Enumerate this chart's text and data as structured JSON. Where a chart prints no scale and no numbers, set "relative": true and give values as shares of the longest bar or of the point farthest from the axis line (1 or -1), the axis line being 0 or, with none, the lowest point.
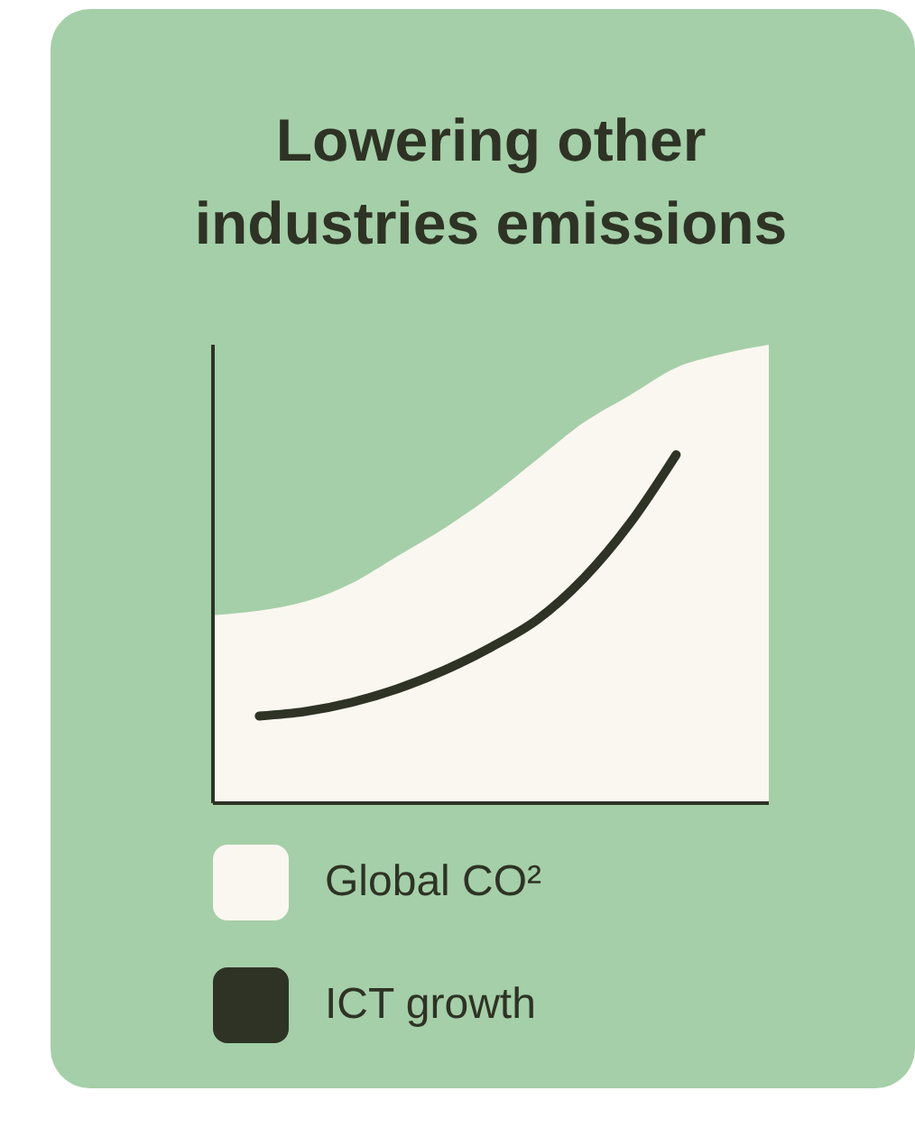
{
  "chart_data": {
    "type": "area",
    "title": "Lowering other industries emissions",
    "relative": true,
    "categories": [
      null,
      null,
      null,
      null,
      null,
      null,
      null,
      null,
      null,
      null,
      null,
      null,
      null
    ],
    "legend": "bottom",
    "series": [
      {
        "name": "Global CO²",
        "color": "#faf7f0",
        "values": [
          0.41,
          0.42,
          0.44,
          0.48,
          0.54,
          0.6,
          0.67,
          0.75,
          0.83,
          0.89,
          0.95,
          0.98,
          1
        ]
      },
      {
        "name": "ICT growth",
        "type": "line",
        "color": "#2e3325",
        "values": [
          null,
          0.19,
          0.2,
          0.22,
          0.25,
          0.29,
          0.34,
          0.4,
          0.49,
          0.61,
          0.76,
          null,
          null
        ]
      }
    ]
  }
}
